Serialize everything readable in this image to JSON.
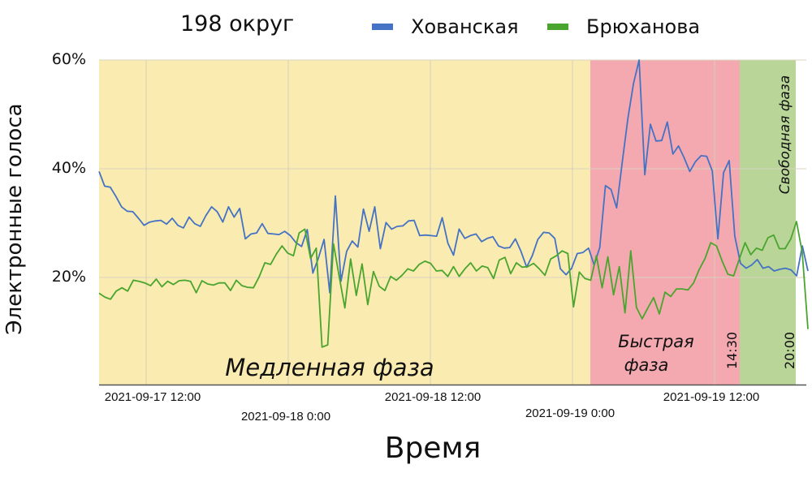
{
  "chart_data": {
    "type": "line",
    "title": "198 округ",
    "xlabel": "Время",
    "ylabel": "Электронные голоса",
    "ylim": [
      0,
      60
    ],
    "yticks": [
      "20%",
      "40%",
      "60%"
    ],
    "xticks": [
      "2021-09-17 12:00",
      "2021-09-18 0:00",
      "2021-09-18 12:00",
      "2021-09-19 0:00",
      "2021-09-19 12:00"
    ],
    "grid": true,
    "legend_position": "top",
    "phases": [
      {
        "name": "Медленная фаза",
        "color": "#faebb0"
      },
      {
        "name": "Быстрая фаза",
        "color": "#f4a9b0"
      },
      {
        "name": "Свободная фаза",
        "color": "#b9d698"
      }
    ],
    "annotations": [
      "14:30",
      "20:00"
    ],
    "series": [
      {
        "name": "Хованская",
        "color": "#4472c4",
        "values": [
          39.5,
          36.8,
          36.6,
          34.9,
          33.0,
          32.2,
          32.1,
          30.9,
          29.6,
          30.2,
          30.4,
          30.5,
          29.8,
          30.9,
          29.6,
          29.1,
          31.1,
          29.9,
          29.4,
          31.4,
          33.0,
          32.1,
          30.2,
          33.0,
          31.1,
          32.7,
          27.1,
          28.0,
          28.2,
          29.9,
          28.1,
          28.0,
          27.9,
          28.5,
          27.7,
          26.4,
          25.7,
          28.8,
          20.8,
          23.6,
          27.0,
          17.2,
          35.0,
          19.3,
          24.8,
          26.7,
          25.6,
          32.6,
          28.5,
          33.0,
          25.3,
          30.1,
          28.9,
          29.4,
          29.5,
          30.4,
          30.5,
          27.7,
          27.8,
          27.7,
          27.6,
          31.0,
          26.3,
          24.1,
          28.9,
          27.2,
          27.7,
          28.0,
          26.6,
          27.2,
          27.5,
          25.8,
          25.4,
          25.5,
          27.1,
          24.8,
          21.9,
          24.0,
          27.0,
          28.3,
          28.2,
          27.2,
          21.6,
          20.5,
          21.7,
          24.4,
          24.6,
          25.4,
          22.3,
          25.5,
          36.9,
          36.2,
          32.8,
          41.3,
          49.3,
          55.7,
          60.0,
          38.9,
          48.2,
          45.1,
          45.2,
          48.6,
          42.7,
          44.2,
          42.0,
          39.5,
          41.3,
          42.4,
          42.3,
          39.6,
          27.1,
          39.3,
          41.5,
          27.6,
          22.6,
          21.7,
          22.3,
          23.3,
          21.7,
          22.0,
          21.2,
          21.5,
          21.7,
          21.4,
          20.3,
          25.8,
          21.2
        ]
      },
      {
        "name": "Брюханова",
        "color": "#4aa52e",
        "values": [
          17.1,
          16.4,
          16.0,
          17.5,
          18.1,
          17.5,
          19.5,
          19.3,
          19.0,
          18.5,
          19.7,
          18.3,
          19.3,
          18.7,
          19.4,
          19.5,
          19.3,
          17.2,
          19.4,
          18.8,
          18.6,
          19.0,
          19.0,
          17.6,
          19.5,
          18.5,
          18.2,
          18.1,
          20.1,
          22.7,
          22.4,
          24.3,
          25.8,
          24.5,
          24.0,
          28.2,
          28.9,
          23.5,
          25.4,
          7.2,
          7.6,
          26.2,
          20.2,
          14.4,
          23.4,
          16.7,
          22.5,
          15.0,
          21.1,
          18.4,
          17.6,
          20.2,
          19.5,
          20.4,
          21.6,
          21.2,
          22.4,
          23.0,
          22.6,
          21.2,
          21.3,
          20.2,
          22.0,
          20.2,
          21.6,
          22.7,
          21.2,
          22.1,
          21.8,
          19.8,
          23.2,
          23.7,
          20.7,
          22.7,
          21.9,
          22.0,
          22.6,
          21.6,
          20.4,
          23.4,
          24.0,
          24.9,
          24.4,
          14.6,
          21.0,
          19.8,
          19.5,
          24.0,
          18.1,
          23.8,
          16.8,
          22.0,
          13.5,
          24.9,
          14.5,
          12.4,
          14.4,
          16.3,
          13.3,
          17.3,
          16.5,
          17.9,
          17.9,
          17.7,
          19.0,
          21.5,
          23.5,
          26.4,
          25.8,
          23.0,
          20.6,
          20.3,
          23.4,
          26.4,
          24.2,
          25.4,
          25.0,
          27.3,
          27.8,
          25.3,
          25.3,
          27.1,
          30.3,
          24.6,
          10.5
        ]
      }
    ]
  },
  "header": {
    "title": "198 округ",
    "legend": [
      {
        "label": "Хованская",
        "color": "#4472c4"
      },
      {
        "label": "Брюханова",
        "color": "#4aa52e"
      }
    ]
  },
  "axes": {
    "y_ticks": [
      "60%",
      "40%",
      "20%"
    ],
    "y_label": "Электронные голоса",
    "x_ticks": [
      "2021-09-17 12:00",
      "2021-09-18 0:00",
      "2021-09-18 12:00",
      "2021-09-19 0:00",
      "2021-09-19 12:00"
    ],
    "x_label": "Время"
  },
  "phase_labels": {
    "slow": "Медленная фаза",
    "fast_line1": "Быстрая",
    "fast_line2": "фаза",
    "free": "Свободная фаза",
    "time_1430": "14:30",
    "time_2000": "20:00"
  }
}
